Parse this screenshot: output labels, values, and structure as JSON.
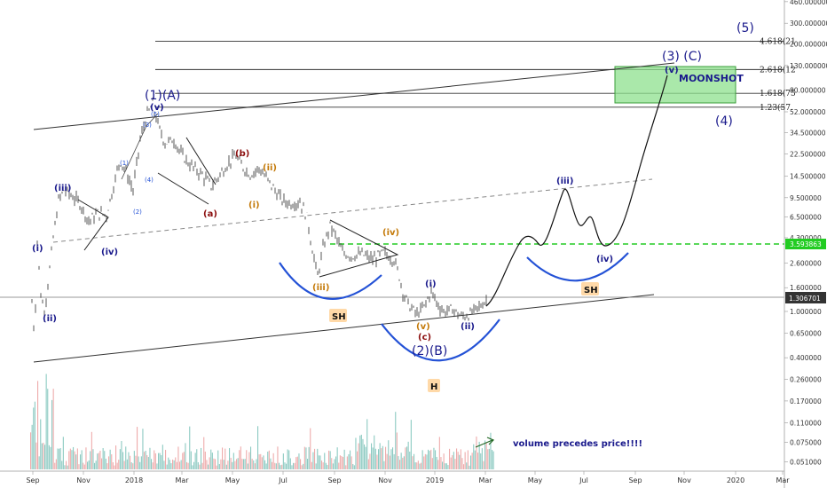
{
  "colors": {
    "navy": "#1a1a8c",
    "wave_blue": "#2452d6",
    "orange": "#c47a0a",
    "darkred": "#8b0d0d",
    "green_dash": "#22cc22",
    "moonshot_fill": "#8ee08e",
    "volume_up": "#2e9e8f",
    "volume_down": "#e06666",
    "sh_badge": "#ffd9a8"
  },
  "chart_data": {
    "type": "line",
    "y_scale": "log",
    "x_ticks": [
      "Sep",
      "Nov",
      "2018",
      "Mar",
      "May",
      "Jul",
      "Sep",
      "Nov",
      "2019",
      "Mar",
      "May",
      "Jul",
      "Sep",
      "Nov",
      "2020",
      "Mar"
    ],
    "y_ticks": [
      "460.000000",
      "300.000000",
      "200.000000",
      "130.000000",
      "80.000000",
      "52.000000",
      "34.500000",
      "22.500000",
      "14.500000",
      "9.500000",
      "6.500000",
      "4.300000",
      "2.600000",
      "1.600000",
      "1.000000",
      "0.650000",
      "0.400000",
      "0.260000",
      "0.170000",
      "0.110000",
      "0.075000",
      "0.051000"
    ],
    "last_price": "1.306701",
    "green_level": "3.593863",
    "fib_labels": [
      "4.618(21",
      "2.618(12",
      "1.618(75",
      "1.23(57."
    ],
    "fib_levels": [
      210,
      120,
      75,
      57
    ],
    "wave_labels": {
      "wave1A": "(1)(A)",
      "wave1v": "(v)",
      "wave3C": "(3)  (C)",
      "wave3v": "(v)",
      "wave5": "(5)",
      "wave4": "(4)",
      "wave2B": "(2)(B)",
      "i": "(i)",
      "ii": "(ii)",
      "iii": "(iii)",
      "iv": "(iv)",
      "a": "(a)",
      "b": "(b)",
      "c": "(c)",
      "o_i": "(i)",
      "o_ii": "(ii)",
      "o_iii": "(iii)",
      "o_iv": "(iv)",
      "o_v": "(v)",
      "p_i": "(i)",
      "p_ii": "(ii)",
      "p_iii": "(iii)",
      "p_iv": "(iv)",
      "sub1": "(1)",
      "sub2": "(2)",
      "sub3": "(3)",
      "sub4": "(4)",
      "sub5": "(5)"
    },
    "moonshot_label": "MOONSHOT",
    "sh_label": "SH",
    "h_label": "H",
    "volume_text": "volume precedes price!!!!"
  }
}
